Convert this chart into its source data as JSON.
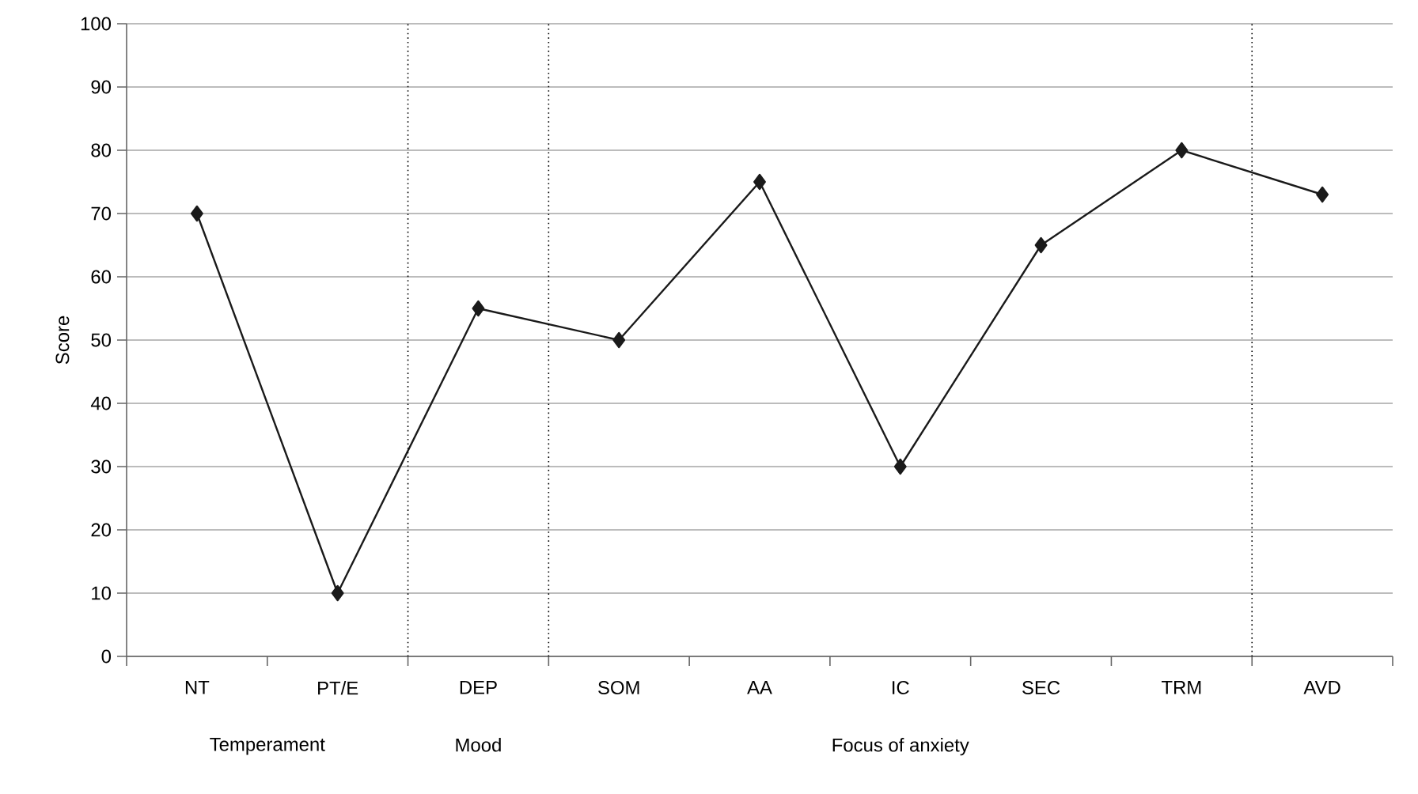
{
  "chart_data": {
    "type": "line",
    "ylabel": "Score",
    "categories": [
      "NT",
      "PT/E",
      "DEP",
      "SOM",
      "AA",
      "IC",
      "SEC",
      "TRM",
      "AVD"
    ],
    "values": [
      70,
      10,
      55,
      50,
      75,
      30,
      65,
      80,
      73
    ],
    "color": "#1a1a1a",
    "marker": "diamond",
    "line_style": "solid",
    "ylim": [
      0,
      100
    ],
    "yticks": [
      0,
      10,
      20,
      30,
      40,
      50,
      60,
      70,
      80,
      90,
      100
    ],
    "grid": "y",
    "annotations": [
      "Temperament",
      "Mood",
      "Focus of anxiety"
    ]
  }
}
